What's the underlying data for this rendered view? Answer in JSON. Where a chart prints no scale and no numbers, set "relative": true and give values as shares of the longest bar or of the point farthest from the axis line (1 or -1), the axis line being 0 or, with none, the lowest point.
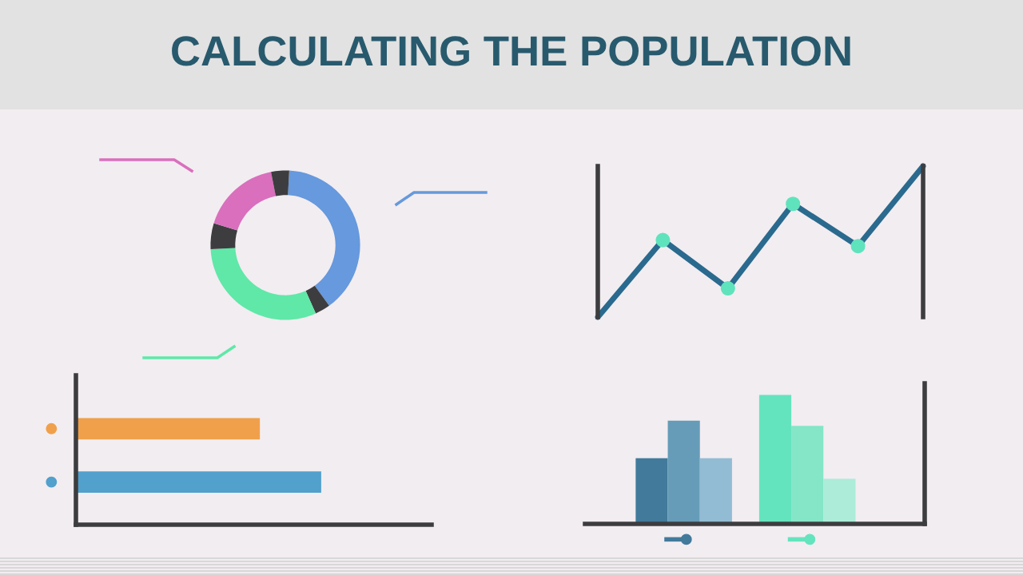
{
  "chart_data": [
    {
      "type": "donut",
      "title": "CALCULATING THE POPULATION",
      "relative": true,
      "categories": [
        null,
        null,
        null,
        null,
        null,
        null
      ],
      "values": [
        39.2,
        3.3,
        30.8,
        5.6,
        17.2,
        3.9
      ],
      "colors": [
        "#6699dd",
        "#3d3d3f",
        "#5fe8a8",
        "#3d3d3f",
        "#d96fbd",
        "#3d3d3f"
      ]
    },
    {
      "type": "line",
      "relative": true,
      "marker": "circle",
      "categories": [
        null,
        null,
        null,
        null,
        null,
        null
      ],
      "series": [
        {
          "color": "#2a6a8e",
          "values": [
            0,
            0.51,
            0.19,
            0.75,
            0.47,
            1
          ]
        }
      ]
    },
    {
      "type": "bar",
      "orientation": "horizontal",
      "relative": true,
      "categories": [
        null,
        null
      ],
      "values": [
        0.75,
        1
      ],
      "colors": [
        "#f0a04b",
        "#52a0cc"
      ]
    },
    {
      "type": "bar",
      "relative": true,
      "categories": [
        null,
        null
      ],
      "series": [
        {
          "values": [
            0.51,
            1
          ],
          "colors": [
            "#427a9b",
            "#64e4be"
          ]
        },
        {
          "values": [
            0.8,
            0.76
          ],
          "colors": [
            "#669cb8",
            "#84e6c6"
          ]
        },
        {
          "values": [
            0.51,
            0.35
          ],
          "colors": [
            "#92bcd4",
            "#acecd9"
          ]
        }
      ]
    }
  ]
}
